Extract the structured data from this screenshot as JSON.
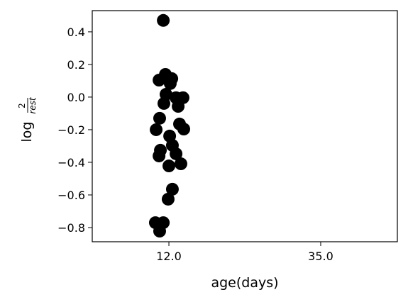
{
  "chart_data": {
    "type": "scatter",
    "xlabel": "age(days)",
    "ylabel": {
      "text": "log",
      "numerator": "2",
      "denominator": "rest"
    },
    "color": "#000000",
    "xlim": [
      -0.505,
      1.505
    ],
    "xticks": [
      {
        "value": 0,
        "label": "12.0"
      },
      {
        "value": 1,
        "label": "35.0"
      }
    ],
    "ylim": [
      -0.887,
      0.53
    ],
    "yticks": [
      {
        "value": 0.4,
        "label": "0.4"
      },
      {
        "value": 0.2,
        "label": "0.2"
      },
      {
        "value": 0.0,
        "label": "0.0"
      },
      {
        "value": -0.2,
        "label": "−0.2"
      },
      {
        "value": -0.4,
        "label": "−0.4"
      },
      {
        "value": -0.6,
        "label": "−0.6"
      },
      {
        "value": -0.8,
        "label": "−0.8"
      }
    ],
    "x": [
      -0.065,
      -0.023,
      0.019,
      0.093,
      0.047,
      -0.065,
      -0.037,
      0.009,
      -0.019,
      0.047,
      -0.033,
      0.061,
      -0.061,
      0.07,
      0.098,
      -0.084,
      0.005,
      -0.056,
      0.023,
      -0.065,
      0.0,
      0.079,
      0.023,
      -0.005,
      -0.089,
      -0.037,
      -0.061
    ],
    "values": [
      0.104,
      0.139,
      0.113,
      -0.004,
      -0.348,
      -0.778,
      0.47,
      0.083,
      0.017,
      -0.004,
      -0.039,
      -0.057,
      -0.13,
      -0.165,
      -0.196,
      -0.2,
      -0.239,
      -0.326,
      -0.296,
      -0.361,
      -0.422,
      -0.409,
      -0.565,
      -0.626,
      -0.77,
      -0.77,
      -0.822
    ]
  }
}
